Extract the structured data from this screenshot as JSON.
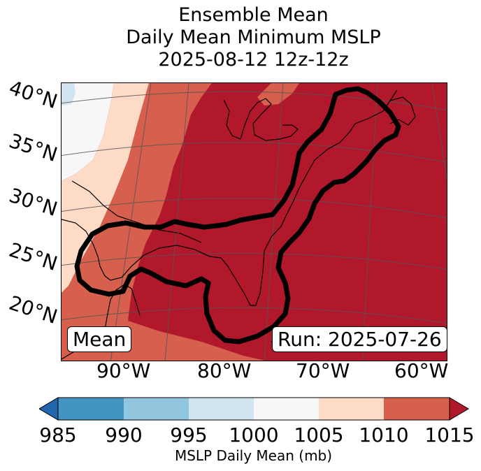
{
  "title": {
    "line1": "Ensemble Mean",
    "line2": "Daily Mean Minimum MSLP",
    "line3": "2025-08-12 12z-12z"
  },
  "map": {
    "lat_labels": [
      "40°N",
      "35°N",
      "30°N",
      "25°N",
      "20°N"
    ],
    "lon_labels": [
      "90°W",
      "80°W",
      "70°W",
      "60°W"
    ],
    "stat_box": "Mean",
    "run_box": "Run: 2025-07-26",
    "contour_description_color": "#000000"
  },
  "colorbar": {
    "label": "MSLP Daily Mean (mb)",
    "ticks": [
      "985",
      "990",
      "995",
      "1000",
      "1005",
      "1010",
      "1015"
    ],
    "colors": [
      "#2166ac",
      "#4393c3",
      "#92c5de",
      "#d1e5f0",
      "#f7f7f7",
      "#fddbc7",
      "#d6604d",
      "#b2182b"
    ]
  }
}
